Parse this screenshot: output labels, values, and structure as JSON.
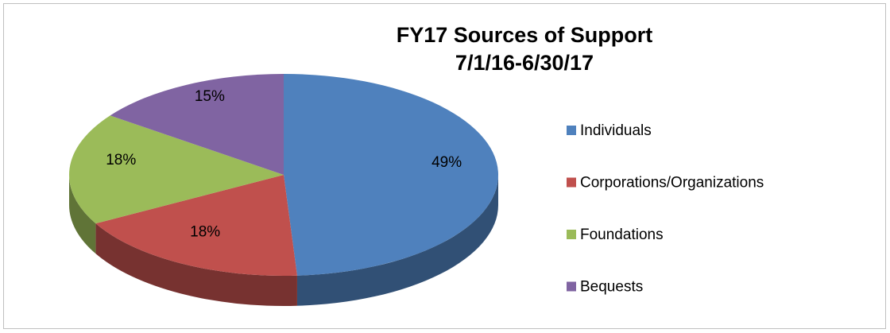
{
  "chart_data": {
    "type": "pie",
    "title": "FY17 Sources of Support",
    "subtitle": "7/1/16-6/30/17",
    "categories": [
      "Individuals",
      "Corporations/Organizations",
      "Foundations",
      "Bequests"
    ],
    "values": [
      49,
      18,
      18,
      15
    ],
    "value_labels": [
      "49%",
      "18%",
      "18%",
      "15%"
    ],
    "colors": [
      "#4f81bd",
      "#c0504d",
      "#9bbb59",
      "#8064a2"
    ],
    "legend": "right"
  }
}
